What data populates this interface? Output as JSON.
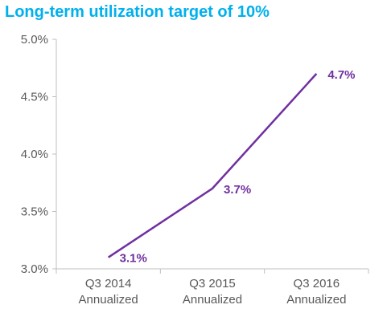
{
  "title": "Long-term utilization target of 10%",
  "colors": {
    "title": "#00b0ee",
    "series": "#7030a0",
    "axis": "#bfbfbf",
    "ticks": "#595959"
  },
  "chart_data": {
    "type": "line",
    "title": "Long-term utilization target of 10%",
    "categories": [
      [
        "Q3 2014",
        "Annualized"
      ],
      [
        "Q3 2015",
        "Annualized"
      ],
      [
        "Q3 2016",
        "Annualized"
      ]
    ],
    "series": [
      {
        "values": [
          3.1,
          3.7,
          4.7
        ],
        "labels": [
          "3.1%",
          "3.7%",
          "4.7%"
        ]
      }
    ],
    "y_ticks": [
      "3.0%",
      "3.5%",
      "4.0%",
      "4.5%",
      "5.0%"
    ],
    "y_tick_values": [
      3.0,
      3.5,
      4.0,
      4.5,
      5.0
    ],
    "ylim": [
      3.0,
      5.0
    ],
    "grid": false,
    "xlabel": "",
    "ylabel": ""
  }
}
